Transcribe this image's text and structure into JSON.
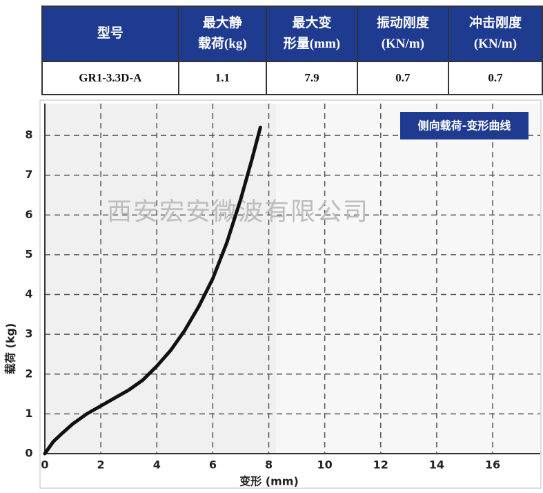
{
  "table": {
    "header": [
      "型号",
      "最大静\n载荷(kg)",
      "最大变\n形量(mm)",
      "振动刚度\n(KN/m)",
      "冲击刚度\n(KN/m)"
    ],
    "rows": [
      [
        "GR1-3.3D-A",
        "1.1",
        "7.9",
        "0.7",
        "0.7"
      ]
    ]
  },
  "chart_data": {
    "type": "line",
    "annotation": "侧向载荷-变形曲线",
    "watermark": "西安宏安微波有限公司",
    "x_label": "变形 (mm)",
    "y_label": "载荷 (kg)",
    "x": [
      0,
      0.3,
      0.6,
      1,
      1.5,
      2,
      2.5,
      3,
      3.5,
      4,
      4.5,
      5,
      5.5,
      6,
      6.5,
      7,
      7.4,
      7.7
    ],
    "values": [
      0,
      0.3,
      0.5,
      0.75,
      1,
      1.2,
      1.4,
      1.6,
      1.85,
      2.2,
      2.6,
      3.1,
      3.7,
      4.4,
      5.3,
      6.4,
      7.4,
      8.2
    ],
    "color": "#111111",
    "xlim": [
      0,
      17.7
    ],
    "ylim": [
      0,
      8.8
    ],
    "xticks": [
      0,
      2,
      4,
      6,
      8,
      10,
      12,
      14,
      16
    ],
    "yticks": [
      0,
      1,
      2,
      3,
      4,
      5,
      6,
      7,
      8
    ],
    "grid": true
  }
}
